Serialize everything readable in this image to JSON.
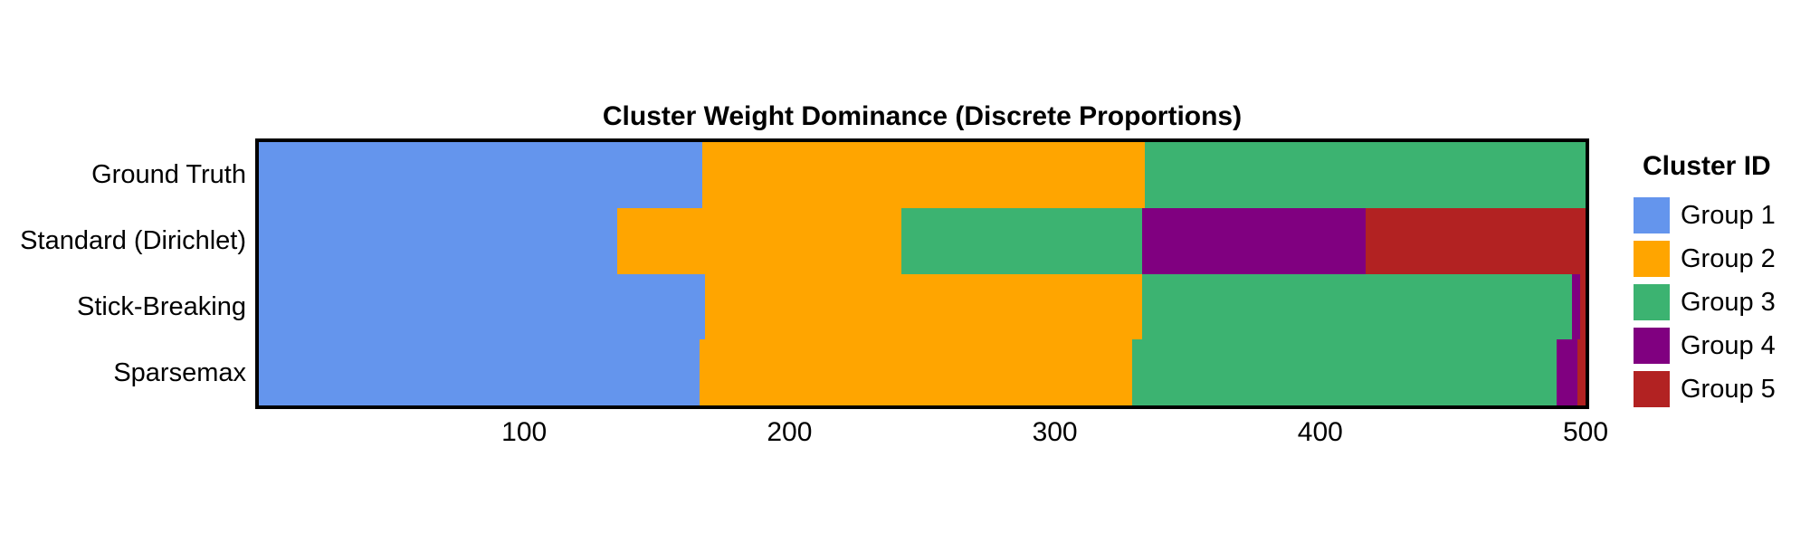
{
  "chart_data": {
    "type": "heatmap",
    "title": "Cluster Weight Dominance (Discrete Proportions)",
    "xlabel": "",
    "ylabel": "",
    "x_range": [
      0,
      500
    ],
    "x_ticks": [
      100,
      200,
      300,
      400,
      500
    ],
    "grid": false,
    "legend_position": "right",
    "rows": [
      {
        "label": "Ground Truth",
        "segments": [
          {
            "group": "Group 1",
            "start": 0,
            "end": 167
          },
          {
            "group": "Group 2",
            "start": 167,
            "end": 334
          },
          {
            "group": "Group 3",
            "start": 334,
            "end": 500
          }
        ]
      },
      {
        "label": "Standard (Dirichlet)",
        "segments": [
          {
            "group": "Group 1",
            "start": 0,
            "end": 135
          },
          {
            "group": "Group 2",
            "start": 135,
            "end": 242
          },
          {
            "group": "Group 3",
            "start": 242,
            "end": 333
          },
          {
            "group": "Group 4",
            "start": 333,
            "end": 417
          },
          {
            "group": "Group 5",
            "start": 417,
            "end": 500
          }
        ]
      },
      {
        "label": "Stick-Breaking",
        "segments": [
          {
            "group": "Group 1",
            "start": 0,
            "end": 168
          },
          {
            "group": "Group 2",
            "start": 168,
            "end": 333
          },
          {
            "group": "Group 3",
            "start": 333,
            "end": 495
          },
          {
            "group": "Group 4",
            "start": 495,
            "end": 498
          },
          {
            "group": "Group 5",
            "start": 498,
            "end": 500
          }
        ]
      },
      {
        "label": "Sparsemax",
        "segments": [
          {
            "group": "Group 1",
            "start": 0,
            "end": 166
          },
          {
            "group": "Group 2",
            "start": 166,
            "end": 329
          },
          {
            "group": "Group 3",
            "start": 329,
            "end": 489
          },
          {
            "group": "Group 4",
            "start": 489,
            "end": 497
          },
          {
            "group": "Group 5",
            "start": 497,
            "end": 500
          }
        ]
      }
    ],
    "legend": {
      "title": "Cluster ID",
      "entries": [
        {
          "label": "Group 1",
          "color": "#6495ED"
        },
        {
          "label": "Group 2",
          "color": "#FFA500"
        },
        {
          "label": "Group 3",
          "color": "#3CB371"
        },
        {
          "label": "Group 4",
          "color": "#800080"
        },
        {
          "label": "Group 5",
          "color": "#B22222"
        }
      ]
    },
    "panel_border_color": "#000000",
    "background_color": "#FFFFFF"
  }
}
